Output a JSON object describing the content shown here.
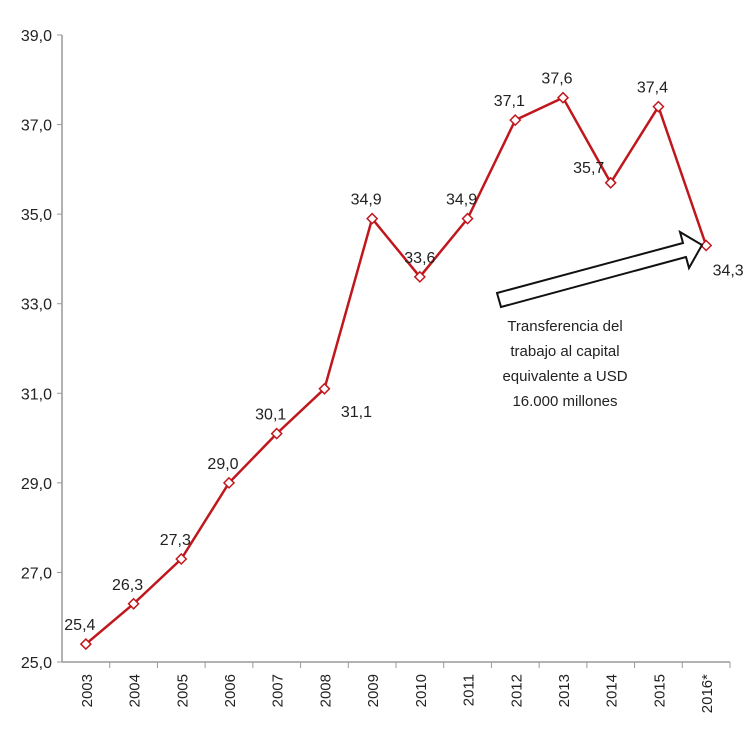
{
  "chart_data": {
    "type": "line",
    "title": "",
    "xlabel": "",
    "ylabel": "",
    "categories": [
      "2003",
      "2004",
      "2005",
      "2006",
      "2007",
      "2008",
      "2009",
      "2010",
      "2011",
      "2012",
      "2013",
      "2014",
      "2015",
      "2016*"
    ],
    "series": [
      {
        "name": "",
        "values": [
          25.4,
          26.3,
          27.3,
          29.0,
          30.1,
          31.1,
          34.9,
          33.6,
          34.9,
          37.1,
          37.6,
          35.7,
          37.4,
          34.3
        ],
        "labels": [
          "25,4",
          "26,3",
          "27,3",
          "29,0",
          "30,1",
          "31,1",
          "34,9",
          "33,6",
          "34,9",
          "37,1",
          "37,6",
          "35,7",
          "37,4",
          "34,3"
        ]
      }
    ],
    "ylim": [
      25,
      39
    ],
    "yticks": [
      25,
      27,
      29,
      31,
      33,
      35,
      37,
      39
    ],
    "ytick_labels": [
      "25,0",
      "27,0",
      "29,0",
      "31,0",
      "33,0",
      "35,0",
      "37,0",
      "39,0"
    ],
    "grid": false,
    "line_color": "#c0171d",
    "annotation": {
      "lines": [
        "Transferencia del",
        "trabajo al capital",
        "equivalente a USD",
        "16.000 millones"
      ],
      "points_to": "2016*"
    }
  }
}
